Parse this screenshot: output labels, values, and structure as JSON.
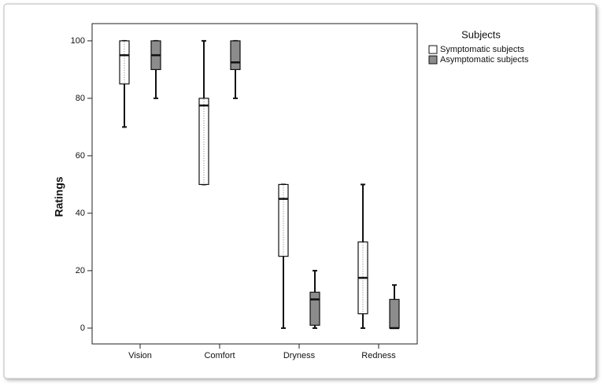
{
  "chart_data": {
    "type": "boxplot",
    "y_label": "Ratings",
    "legend_title": "Subjects",
    "legend_position": "right",
    "categories": [
      "Vision",
      "Comfort",
      "Dryness",
      "Redness"
    ],
    "ylim": [
      -5.5,
      106
    ],
    "yticks": [
      0,
      20,
      40,
      60,
      80,
      100
    ],
    "series": [
      {
        "name": "Symptomatic subjects",
        "color": "#ffffff",
        "min": [
          70,
          50,
          0,
          0
        ],
        "q1": [
          85,
          50,
          25,
          5
        ],
        "median": [
          95,
          77.5,
          45,
          17.5
        ],
        "q3": [
          100,
          80,
          50,
          30
        ],
        "max": [
          100,
          100,
          50,
          50
        ]
      },
      {
        "name": "Asymptomatic subjects",
        "color": "#8c8c8c",
        "min": [
          80,
          80,
          0,
          0
        ],
        "q1": [
          90,
          90,
          1,
          0
        ],
        "median": [
          95,
          92.5,
          10,
          0
        ],
        "q3": [
          100,
          100,
          12.5,
          10
        ],
        "max": [
          100,
          100,
          20,
          15
        ]
      }
    ]
  }
}
